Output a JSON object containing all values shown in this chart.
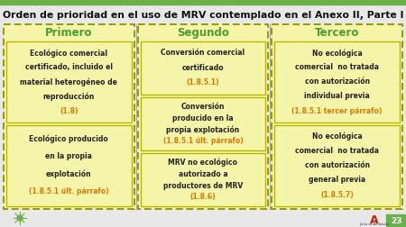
{
  "title": "Orden de prioridad en el uso de MRV contemplado en el Anexo II, Parte I",
  "title_color": "#111111",
  "top_bar_color": "#6ab04c",
  "bg_color": "#e8e8e8",
  "content_bg": "#e8e8e8",
  "header_color": "#4a9e2a",
  "col_bg": "#f5f5aa",
  "col_border": "#999900",
  "box_bg": "#f5f5aa",
  "box_border": "#b8b800",
  "text_black": "#222222",
  "text_orange": "#e07800",
  "page_num": "23",
  "columns": [
    {
      "header": "Primero",
      "boxes": [
        {
          "text_black": "Ecológico comercial\ncertificado, incluido el\nmaterial heterogéneo de\nreproducción",
          "text_orange": "(1.8)"
        },
        {
          "text_black": "Ecológico producido\nen la propia\nexplotación",
          "text_orange": "(1.8.5.1 últ. párrafo)"
        }
      ]
    },
    {
      "header": "Segundo",
      "boxes": [
        {
          "text_black": "Conversión comercial\ncertificado",
          "text_orange": "(1.8.5.1)"
        },
        {
          "text_black": "Conversión\nproducido en la\npropia explotación",
          "text_orange": "(1.8.5.1 últ. párrafo)"
        },
        {
          "text_black": "MRV no ecológico\nautorizado a\nproductores de MRV",
          "text_orange": "(1.8.6)"
        }
      ]
    },
    {
      "header": "Tercero",
      "boxes": [
        {
          "text_black": "No ecológica\ncomercial  no tratada\ncon autorización\nindividual previa",
          "text_orange": "(1.8.5.1 tercer párrafo)"
        },
        {
          "text_black": "No ecológica\ncomercial  no tratada\ncon autorización\ngeneral previa",
          "text_orange": "(1.8.5.7)"
        }
      ]
    }
  ]
}
